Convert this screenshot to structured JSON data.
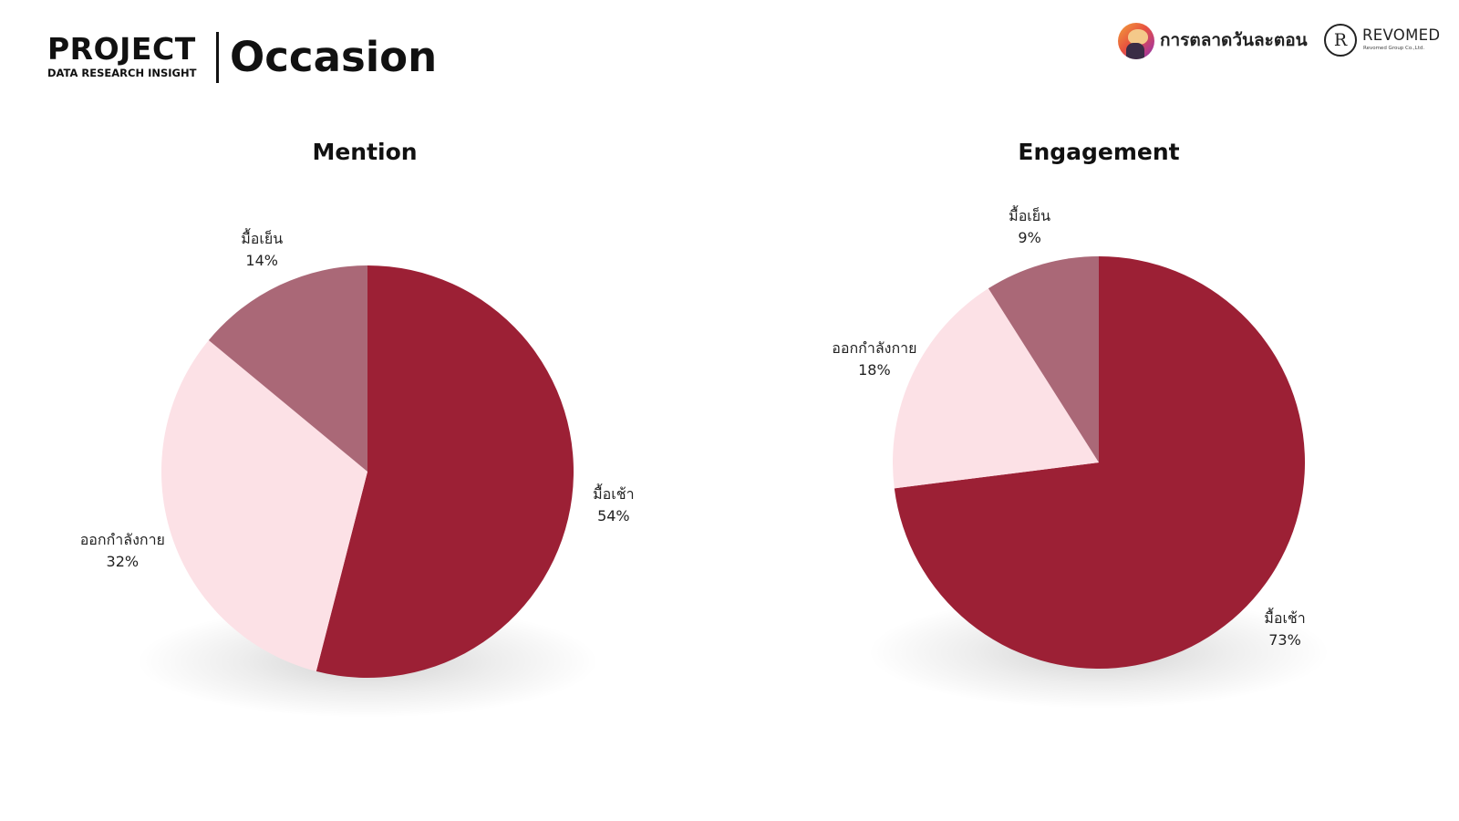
{
  "header": {
    "project_title": "PROJECT",
    "project_subtitle": "DATA RESEARCH INSIGHT",
    "page_title": "Occasion"
  },
  "brands": {
    "primary_name": "การตลาดวันละตอน",
    "secondary_name": "REVOMED",
    "secondary_tagline": "Revomed Group Co.,Ltd.",
    "secondary_monogram": "R"
  },
  "colors": {
    "breakfast": "#9c2035",
    "exercise": "#fce1e6",
    "dinner": "#aa6877"
  },
  "chart_data": [
    {
      "type": "pie",
      "title": "Mention",
      "slices": [
        {
          "label": "มื้อเช้า",
          "value": 54,
          "display": "54%",
          "color": "#9c2035"
        },
        {
          "label": "ออกกำลังกาย",
          "value": 32,
          "display": "32%",
          "color": "#fce1e6"
        },
        {
          "label": "มื้อเย็น",
          "value": 14,
          "display": "14%",
          "color": "#aa6877"
        }
      ]
    },
    {
      "type": "pie",
      "title": "Engagement",
      "slices": [
        {
          "label": "มื้อเช้า",
          "value": 73,
          "display": "73%",
          "color": "#9c2035"
        },
        {
          "label": "ออกกำลังกาย",
          "value": 18,
          "display": "18%",
          "color": "#fce1e6"
        },
        {
          "label": "มื้อเย็น",
          "value": 9,
          "display": "9%",
          "color": "#aa6877"
        }
      ]
    }
  ]
}
